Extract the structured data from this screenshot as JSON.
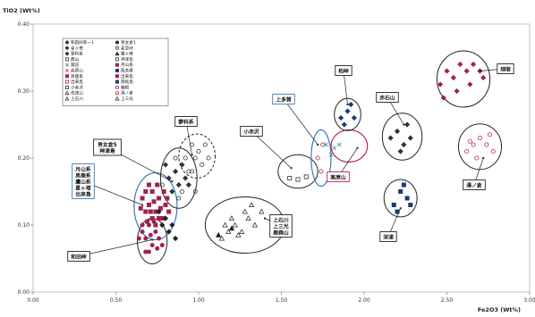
{
  "chart_data": {
    "type": "scatter",
    "title": "",
    "xlabel": "Fe2O3 (Wt%)",
    "ylabel": "TiO2 (Wt%)",
    "xlim": [
      0,
      3.0
    ],
    "ylim": [
      0,
      0.4
    ],
    "xticks": [
      "0.00",
      "0.50",
      "1.00",
      "1.50",
      "2.00",
      "2.50",
      "3.00"
    ],
    "yticks": [
      "0.00",
      "0.10",
      "0.20",
      "0.30",
      "0.40"
    ],
    "grid": false,
    "legend_position": "top-left",
    "legend": [
      {
        "label": "和田峠系ー1",
        "marker": "diamond",
        "color": "#333333",
        "filled": true
      },
      {
        "label": "男女倉1",
        "marker": "circle",
        "color": "#333333",
        "filled": true
      },
      {
        "label": "星ヶ塔",
        "marker": "diamond",
        "color": "#333333",
        "filled": true
      },
      {
        "label": "麦草峠",
        "marker": "circle",
        "color": "#333333",
        "filled": false
      },
      {
        "label": "蓼科系",
        "marker": "diamond",
        "color": "#333333",
        "filled": true
      },
      {
        "label": "霧ヶ峰",
        "marker": "triangle",
        "color": "#333333",
        "filled": true
      },
      {
        "label": "鷹山",
        "marker": "square",
        "color": "#333333",
        "filled": false
      },
      {
        "label": "神津島",
        "marker": "square",
        "color": "#333333",
        "filled": false
      },
      {
        "label": "諏訪",
        "marker": "cross",
        "color": "#3a7abf",
        "filled": false
      },
      {
        "label": "月山系",
        "marker": "square",
        "color": "#a0224a",
        "filled": true
      },
      {
        "label": "高原山",
        "marker": "cross",
        "color": "#c02050",
        "filled": false
      },
      {
        "label": "西多摩",
        "marker": "square",
        "color": "#1a3a7a",
        "filled": true
      },
      {
        "label": "男鹿系",
        "marker": "square",
        "color": "#a0224a",
        "filled": true
      },
      {
        "label": "出来島",
        "marker": "square",
        "color": "#a0224a",
        "filled": true
      },
      {
        "label": "出来島",
        "marker": "square",
        "color": "#c02050",
        "filled": false
      },
      {
        "label": "隠岐島",
        "marker": "square",
        "color": "#1a3a7a",
        "filled": true
      },
      {
        "label": "小赤沢",
        "marker": "square",
        "color": "#333333",
        "filled": false
      },
      {
        "label": "箱根",
        "marker": "circle",
        "color": "#c02050",
        "filled": false
      },
      {
        "label": "佐渡山",
        "marker": "triangle",
        "color": "#333333",
        "filled": false
      },
      {
        "label": "湯ノ倉",
        "marker": "circle",
        "color": "#c02050",
        "filled": false
      },
      {
        "label": "上石川",
        "marker": "triangle",
        "color": "#333333",
        "filled": false
      },
      {
        "label": "上三光",
        "marker": "triangle",
        "color": "#333333",
        "filled": false
      }
    ],
    "series": [
      {
        "group": "wadatoge",
        "marker": "circle",
        "color": "#a0224a",
        "filled": true,
        "points": [
          [
            0.66,
            0.09
          ],
          [
            0.68,
            0.08
          ],
          [
            0.7,
            0.1
          ],
          [
            0.72,
            0.07
          ],
          [
            0.74,
            0.09
          ],
          [
            0.76,
            0.08
          ],
          [
            0.68,
            0.06
          ],
          [
            0.64,
            0.08
          ],
          [
            0.7,
            0.06
          ],
          [
            0.78,
            0.07
          ],
          [
            0.73,
            0.105
          ],
          [
            0.66,
            0.1
          ],
          [
            0.71,
            0.085
          ],
          [
            0.75,
            0.065
          ]
        ]
      },
      {
        "group": "gassan-oga-hoshigato-dekijima",
        "marker": "square",
        "color": "#a0224a",
        "filled": true,
        "points": [
          [
            0.66,
            0.14
          ],
          [
            0.68,
            0.12
          ],
          [
            0.7,
            0.13
          ],
          [
            0.72,
            0.15
          ],
          [
            0.74,
            0.12
          ],
          [
            0.76,
            0.14
          ],
          [
            0.78,
            0.11
          ],
          [
            0.8,
            0.13
          ],
          [
            0.7,
            0.16
          ],
          [
            0.72,
            0.11
          ],
          [
            0.75,
            0.16
          ],
          [
            0.68,
            0.15
          ],
          [
            0.82,
            0.12
          ],
          [
            0.73,
            0.135
          ],
          [
            0.77,
            0.125
          ],
          [
            0.69,
            0.105
          ],
          [
            0.65,
            0.125
          ],
          [
            0.79,
            0.15
          ],
          [
            0.71,
            0.12
          ],
          [
            0.74,
            0.1
          ],
          [
            0.81,
            0.14
          ],
          [
            0.76,
            0.11
          ]
        ]
      },
      {
        "group": "gassan-black",
        "marker": "diamond",
        "color": "#222222",
        "filled": true,
        "points": [
          [
            0.78,
            0.1
          ],
          [
            0.82,
            0.09
          ],
          [
            0.8,
            0.11
          ],
          [
            0.84,
            0.1
          ],
          [
            0.76,
            0.12
          ],
          [
            0.86,
            0.08
          ]
        ]
      },
      {
        "group": "onnagura5-kozushima",
        "marker": "diamond",
        "color": "#333333",
        "filled": true,
        "points": [
          [
            0.82,
            0.17
          ],
          [
            0.86,
            0.18
          ],
          [
            0.88,
            0.16
          ],
          [
            0.9,
            0.19
          ],
          [
            0.84,
            0.15
          ],
          [
            0.92,
            0.17
          ],
          [
            0.8,
            0.19
          ],
          [
            0.94,
            0.16
          ]
        ]
      },
      {
        "group": "onnagura5-open",
        "marker": "circle",
        "color": "#333333",
        "filled": false,
        "points": [
          [
            0.86,
            0.2
          ],
          [
            0.9,
            0.15
          ],
          [
            0.96,
            0.18
          ],
          [
            0.88,
            0.14
          ],
          [
            0.78,
            0.16
          ],
          [
            0.98,
            0.15
          ]
        ]
      },
      {
        "group": "tateshina",
        "marker": "circle",
        "color": "#333333",
        "filled": false,
        "points": [
          [
            0.92,
            0.2
          ],
          [
            0.96,
            0.22
          ],
          [
            1.0,
            0.21
          ],
          [
            1.02,
            0.19
          ],
          [
            0.98,
            0.2
          ],
          [
            1.04,
            0.22
          ],
          [
            0.94,
            0.18
          ],
          [
            1.06,
            0.2
          ]
        ]
      },
      {
        "group": "kamiishikawa",
        "marker": "triangle",
        "color": "#333333",
        "filled": false,
        "points": [
          [
            1.14,
            0.08
          ],
          [
            1.18,
            0.09
          ],
          [
            1.22,
            0.1
          ],
          [
            1.26,
            0.09
          ],
          [
            1.3,
            0.11
          ],
          [
            1.34,
            0.1
          ],
          [
            1.38,
            0.12
          ],
          [
            1.2,
            0.11
          ],
          [
            1.28,
            0.12
          ],
          [
            1.16,
            0.1
          ],
          [
            1.32,
            0.13
          ],
          [
            1.24,
            0.085
          ]
        ]
      },
      {
        "group": "kamiishikawa-filled",
        "marker": "triangle",
        "color": "#222222",
        "filled": true,
        "points": [
          [
            1.12,
            0.085
          ],
          [
            1.2,
            0.095
          ]
        ]
      },
      {
        "group": "koakazawa",
        "marker": "square",
        "color": "#333333",
        "filled": false,
        "points": [
          [
            1.55,
            0.17
          ],
          [
            1.6,
            0.168
          ],
          [
            1.65,
            0.172
          ]
        ]
      },
      {
        "group": "kamitaga",
        "marker": "circle",
        "color": "#a0224a",
        "filled": false,
        "points": [
          [
            1.72,
            0.2
          ],
          [
            1.75,
            0.22
          ],
          [
            1.74,
            0.18
          ]
        ]
      },
      {
        "group": "takaharayama",
        "marker": "cross",
        "color": "#3a7abf",
        "filled": false,
        "points": [
          [
            1.77,
            0.22
          ],
          [
            1.82,
            0.215
          ],
          [
            1.85,
            0.22
          ],
          [
            1.8,
            0.205
          ]
        ]
      },
      {
        "group": "kashiwatoge",
        "marker": "diamond",
        "color": "#1a3a7a",
        "filled": true,
        "points": [
          [
            1.86,
            0.26
          ],
          [
            1.9,
            0.27
          ],
          [
            1.94,
            0.26
          ],
          [
            1.88,
            0.25
          ],
          [
            1.92,
            0.28
          ]
        ]
      },
      {
        "group": "akaishi",
        "marker": "diamond",
        "color": "#333333",
        "filled": true,
        "points": [
          [
            2.16,
            0.23
          ],
          [
            2.2,
            0.24
          ],
          [
            2.24,
            0.22
          ],
          [
            2.28,
            0.23
          ],
          [
            2.22,
            0.21
          ],
          [
            2.26,
            0.25
          ]
        ]
      },
      {
        "group": "fukaura",
        "marker": "square",
        "color": "#1a3a7a",
        "filled": true,
        "points": [
          [
            2.18,
            0.13
          ],
          [
            2.22,
            0.15
          ],
          [
            2.26,
            0.14
          ],
          [
            2.2,
            0.12
          ],
          [
            2.24,
            0.16
          ],
          [
            2.28,
            0.13
          ]
        ]
      },
      {
        "group": "hakone",
        "marker": "diamond",
        "color": "#a0224a",
        "filled": true,
        "points": [
          [
            2.46,
            0.31
          ],
          [
            2.5,
            0.33
          ],
          [
            2.54,
            0.32
          ],
          [
            2.58,
            0.34
          ],
          [
            2.62,
            0.33
          ],
          [
            2.66,
            0.34
          ],
          [
            2.7,
            0.33
          ],
          [
            2.48,
            0.29
          ],
          [
            2.56,
            0.3
          ],
          [
            2.64,
            0.31
          ],
          [
            2.72,
            0.32
          ]
        ]
      },
      {
        "group": "yunokura",
        "marker": "circle",
        "color": "#c02050",
        "filled": false,
        "points": [
          [
            2.62,
            0.21
          ],
          [
            2.66,
            0.22
          ],
          [
            2.7,
            0.23
          ],
          [
            2.74,
            0.22
          ],
          [
            2.78,
            0.21
          ],
          [
            2.68,
            0.2
          ],
          [
            2.76,
            0.235
          ],
          [
            2.64,
            0.225
          ]
        ]
      }
    ],
    "annotations": [
      {
        "label": "和田峠"
      },
      {
        "label": "月山系\n男鹿系\n鷹山系\n星ヶ塔\n出来島"
      },
      {
        "label": "男女倉5\n神津島"
      },
      {
        "label": "蓼科系"
      },
      {
        "label": "上石川\n上三光\n鹿森山"
      },
      {
        "label": "小赤沢"
      },
      {
        "label": "上多賀"
      },
      {
        "label": "柏峠"
      },
      {
        "label": "高原山"
      },
      {
        "label": "畑宿"
      },
      {
        "label": "赤石山"
      },
      {
        "label": "深浦"
      },
      {
        "label": "湯ノ倉"
      }
    ]
  }
}
